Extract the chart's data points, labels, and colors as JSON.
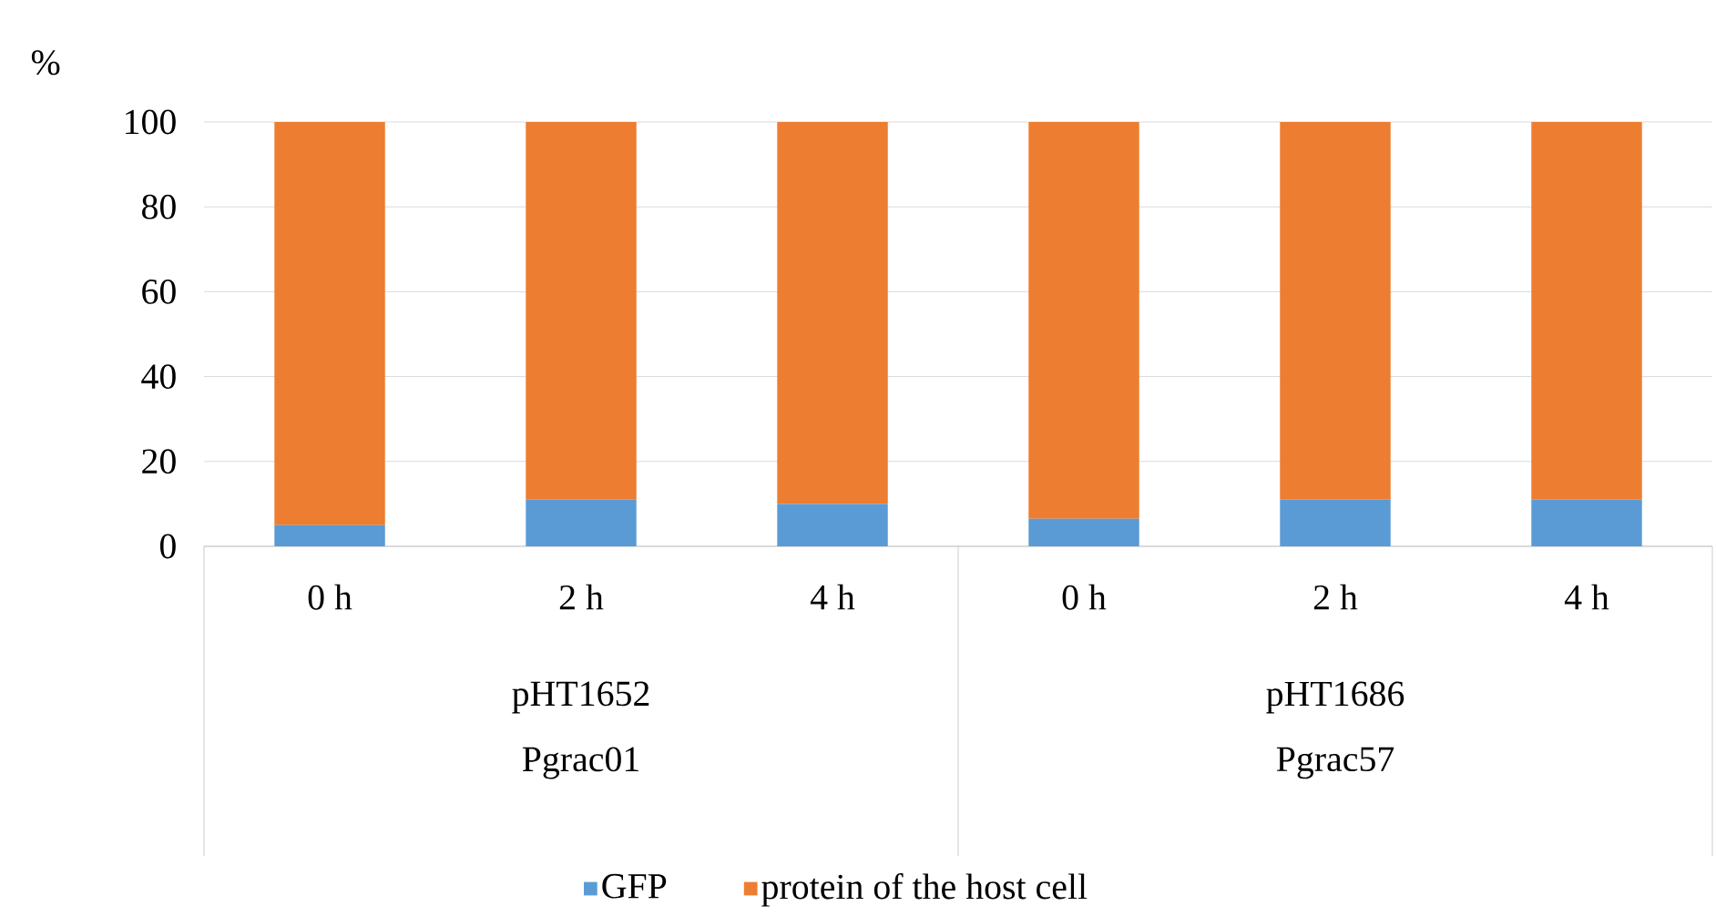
{
  "chart_data": {
    "type": "bar",
    "stacked": true,
    "ylabel": "%",
    "categories": [
      "0 h",
      "2 h",
      "4 h",
      "0 h",
      "2 h",
      "4 h"
    ],
    "series": [
      {
        "name": "GFP",
        "color": "#5b9bd5",
        "values": [
          5,
          11,
          10,
          6.5,
          11,
          11
        ]
      },
      {
        "name": "protein of the host cell",
        "color": "#ed7d31",
        "values": [
          95,
          89,
          90,
          93.5,
          89,
          89
        ]
      }
    ],
    "ylim": [
      0,
      100
    ],
    "yticks": [
      0,
      20,
      40,
      60,
      80,
      100
    ],
    "grid": "y",
    "legend": "bottom",
    "annotations": [
      "pHT1652",
      "Pgrac01",
      "pHT1686",
      "Pgrac57"
    ]
  }
}
